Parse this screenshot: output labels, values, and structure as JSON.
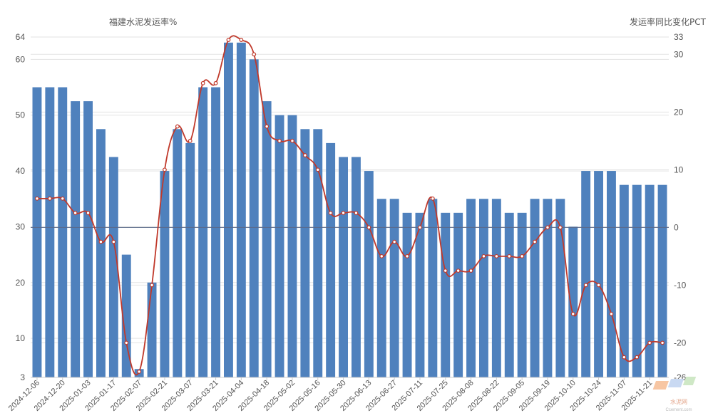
{
  "chart_data": {
    "type": "bar",
    "left_title": "福建水泥发运率%",
    "right_title": "发运率同比变化PCT",
    "left_ticks": [
      3,
      10,
      20,
      30,
      40,
      50,
      60,
      64
    ],
    "right_ticks": [
      -26,
      -20,
      -10,
      0,
      10,
      20,
      30,
      33
    ],
    "left_range": [
      3,
      64
    ],
    "right_range": [
      -26,
      33
    ],
    "x_tick_labels": [
      "2024-12-06",
      "2024-12-20",
      "2025-01-03",
      "2025-01-17",
      "2025-02-07",
      "2025-02-21",
      "2025-03-07",
      "2025-03-21",
      "2025-04-04",
      "2025-04-18",
      "2025-05-02",
      "2025-05-16",
      "2025-05-30",
      "2025-06-13",
      "2025-06-27",
      "2025-07-11",
      "2025-07-25",
      "2025-08-08",
      "2025-08-22",
      "2025-09-05",
      "2025-09-19",
      "2025-10-10",
      "2025-10-24",
      "2025-11-07",
      "2025-11-21"
    ],
    "series": [
      {
        "type": "bar",
        "axis": "left",
        "color": "#4f81bd",
        "values": [
          55,
          55,
          55,
          52.5,
          52.5,
          47.5,
          42.5,
          25,
          4.5,
          20,
          40,
          47.5,
          45,
          55,
          55,
          63,
          63,
          60,
          52.5,
          50,
          50,
          47.5,
          47.5,
          45,
          42.5,
          42.5,
          40,
          35,
          35,
          32.5,
          32.5,
          35,
          32.5,
          32.5,
          35,
          35,
          35,
          32.5,
          32.5,
          35,
          35,
          35,
          30,
          40,
          40,
          40,
          37.5,
          37.5,
          37.5,
          37.5
        ]
      },
      {
        "type": "line",
        "axis": "right",
        "color": "#c0392b",
        "values": [
          5,
          5,
          5,
          2.5,
          2.5,
          -2.5,
          -2.5,
          -20,
          -25,
          -10,
          10,
          17.5,
          15,
          25,
          25,
          32.5,
          32.5,
          30,
          17.5,
          15,
          15,
          12.5,
          10,
          2.5,
          2.5,
          2.5,
          0,
          -5,
          -2.5,
          -5,
          0,
          5,
          -7.5,
          -7.5,
          -7.5,
          -5,
          -5,
          -5,
          -5,
          -2.5,
          0,
          0,
          -15,
          -10,
          -10,
          -15,
          -22.5,
          -22.5,
          -20,
          -20
        ]
      }
    ],
    "watermark": "水泥网",
    "watermark_sub": "Ccement.com"
  }
}
